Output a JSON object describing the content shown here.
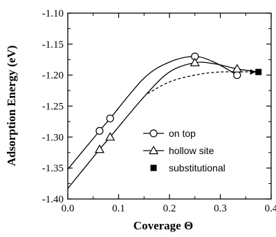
{
  "chart_data": {
    "type": "line",
    "xlabel": "Coverage Θ",
    "ylabel": "Adsorption Energy (eV)",
    "xlim": [
      0.0,
      0.4
    ],
    "ylim": [
      -1.4,
      -1.1
    ],
    "xticks": [
      0.0,
      0.1,
      0.2,
      0.3,
      0.4
    ],
    "xtick_labels": [
      "0.0",
      "0.1",
      "0.2",
      "0.3",
      "0.4"
    ],
    "yticks": [
      -1.4,
      -1.35,
      -1.3,
      -1.25,
      -1.2,
      -1.15,
      -1.1
    ],
    "ytick_labels": [
      "-1.40",
      "-1.35",
      "-1.30",
      "-1.25",
      "-1.20",
      "-1.15",
      "-1.10"
    ],
    "grid": false,
    "legend_position": "center-right",
    "series": [
      {
        "name": "on top",
        "marker": "circle",
        "points": [
          [
            0.0625,
            -1.29
          ],
          [
            0.0833,
            -1.27
          ],
          [
            0.25,
            -1.17
          ],
          [
            0.333,
            -1.2
          ]
        ],
        "curve": [
          [
            0.0,
            -1.352
          ],
          [
            0.0625,
            -1.29
          ],
          [
            0.0833,
            -1.27
          ],
          [
            0.15,
            -1.205
          ],
          [
            0.2,
            -1.179
          ],
          [
            0.25,
            -1.17
          ],
          [
            0.29,
            -1.18
          ],
          [
            0.333,
            -1.2
          ]
        ]
      },
      {
        "name": "hollow site",
        "marker": "triangle",
        "points": [
          [
            0.0625,
            -1.32
          ],
          [
            0.0833,
            -1.3
          ],
          [
            0.25,
            -1.18
          ],
          [
            0.333,
            -1.19
          ]
        ],
        "curve": [
          [
            0.0,
            -1.383
          ],
          [
            0.0625,
            -1.32
          ],
          [
            0.0833,
            -1.3
          ],
          [
            0.15,
            -1.235
          ],
          [
            0.2,
            -1.195
          ],
          [
            0.25,
            -1.18
          ],
          [
            0.29,
            -1.182
          ],
          [
            0.333,
            -1.19
          ],
          [
            0.375,
            -1.195
          ]
        ]
      },
      {
        "name": "substitutional",
        "marker": "square",
        "points": [
          [
            0.375,
            -1.195
          ]
        ],
        "curve": [
          [
            0.157,
            -1.23
          ],
          [
            0.2,
            -1.211
          ],
          [
            0.25,
            -1.2
          ],
          [
            0.3,
            -1.195
          ],
          [
            0.375,
            -1.195
          ]
        ],
        "line_style": "dashed"
      }
    ]
  }
}
